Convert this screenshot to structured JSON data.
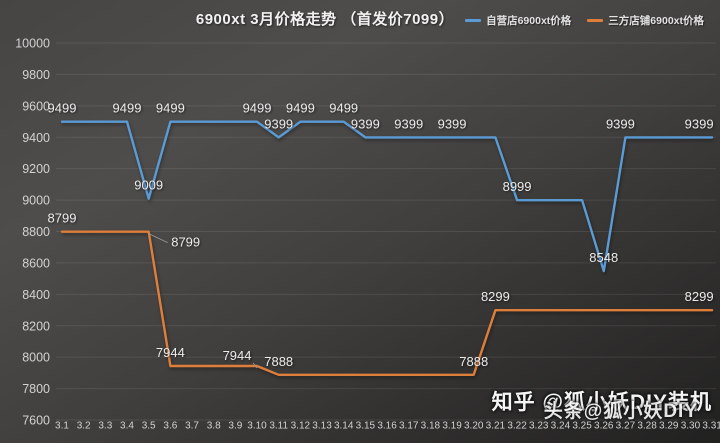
{
  "header": {
    "title": "6900xt 3月价格走势 （首发价7099）"
  },
  "watermarks": {
    "zhihu": "知乎 @狐小妖DIY装机",
    "toutiao": "头条@狐小妖DIY"
  },
  "colors": {
    "background_top": "#4e4d4b",
    "background_bottom": "#212120",
    "grid": "rgba(255,255,255,0.09)",
    "axis_text": "#d2d2d2",
    "data_label_text": "#ececec",
    "series_blue": "#5b9bd5",
    "series_orange": "#dd7e3b"
  },
  "chart_data": {
    "type": "line",
    "title": "6900xt 3月价格走势 （首发价7099）",
    "xlabel": "",
    "ylabel": "",
    "ylim": [
      7600,
      10000
    ],
    "y_ticks": [
      10000,
      9800,
      9600,
      9400,
      9200,
      9000,
      8800,
      8600,
      8400,
      8200,
      8000,
      7800,
      7600
    ],
    "grid": "horizontal",
    "legend_position": "top-right",
    "x_categories": [
      "3.1",
      "3.2",
      "3.3",
      "3.4",
      "3.5",
      "3.6",
      "3.7",
      "3.8",
      "3.9",
      "3.10",
      "3.11",
      "3.12",
      "3.13",
      "3.14",
      "3.15",
      "3.16",
      "3.17",
      "3.18",
      "3.19",
      "3.20",
      "3.21",
      "3.22",
      "3.23",
      "3.24",
      "3.25",
      "3.26",
      "3.27",
      "3.28",
      "3.29",
      "3.30",
      "3.31"
    ],
    "series": [
      {
        "name": "自营店6900xt价格",
        "color": "#5b9bd5",
        "values": [
          9499,
          9499,
          9499,
          9499,
          9009,
          9499,
          9499,
          9499,
          9499,
          9499,
          9399,
          9499,
          9499,
          9499,
          9399,
          9399,
          9399,
          9399,
          9399,
          9399,
          9399,
          8999,
          8999,
          8999,
          8999,
          8548,
          9399,
          9399,
          9399,
          9399,
          9399
        ],
        "labels": [
          {
            "day": "3.1",
            "value": 9499
          },
          {
            "day": "3.4",
            "value": 9499
          },
          {
            "day": "3.5",
            "value": 9009
          },
          {
            "day": "3.6",
            "value": 9499
          },
          {
            "day": "3.10",
            "value": 9499
          },
          {
            "day": "3.11",
            "value": 9399
          },
          {
            "day": "3.12",
            "value": 9499
          },
          {
            "day": "3.14",
            "value": 9499
          },
          {
            "day": "3.15",
            "value": 9399
          },
          {
            "day": "3.17",
            "value": 9399
          },
          {
            "day": "3.19",
            "value": 9399
          },
          {
            "day": "3.22",
            "value": 8999
          },
          {
            "day": "3.26",
            "value": 8548
          },
          {
            "day": "3.27",
            "value": 9399,
            "dx": -5
          },
          {
            "day": "3.31",
            "value": 9399,
            "dx": -13
          }
        ]
      },
      {
        "name": "三方店铺6900xt价格",
        "color": "#dd7e3b",
        "values": [
          8799,
          8799,
          8799,
          8799,
          8799,
          7944,
          7944,
          7944,
          7944,
          7944,
          7888,
          7888,
          7888,
          7888,
          7888,
          7888,
          7888,
          7888,
          7888,
          7888,
          8299,
          8299,
          8299,
          8299,
          8299,
          8299,
          8299,
          8299,
          8299,
          8299,
          8299
        ],
        "labels": [
          {
            "day": "3.1",
            "value": 8799
          },
          {
            "day": "3.5",
            "value": 8799,
            "placement": "below-right",
            "leader": true
          },
          {
            "day": "3.6",
            "value": 7944
          },
          {
            "day": "3.10",
            "value": 7944,
            "placement": "above-left",
            "leader": true
          },
          {
            "day": "3.11",
            "value": 7888
          },
          {
            "day": "3.20",
            "value": 7888
          },
          {
            "day": "3.21",
            "value": 8299
          },
          {
            "day": "3.31",
            "value": 8299,
            "dx": -13
          }
        ]
      }
    ]
  }
}
